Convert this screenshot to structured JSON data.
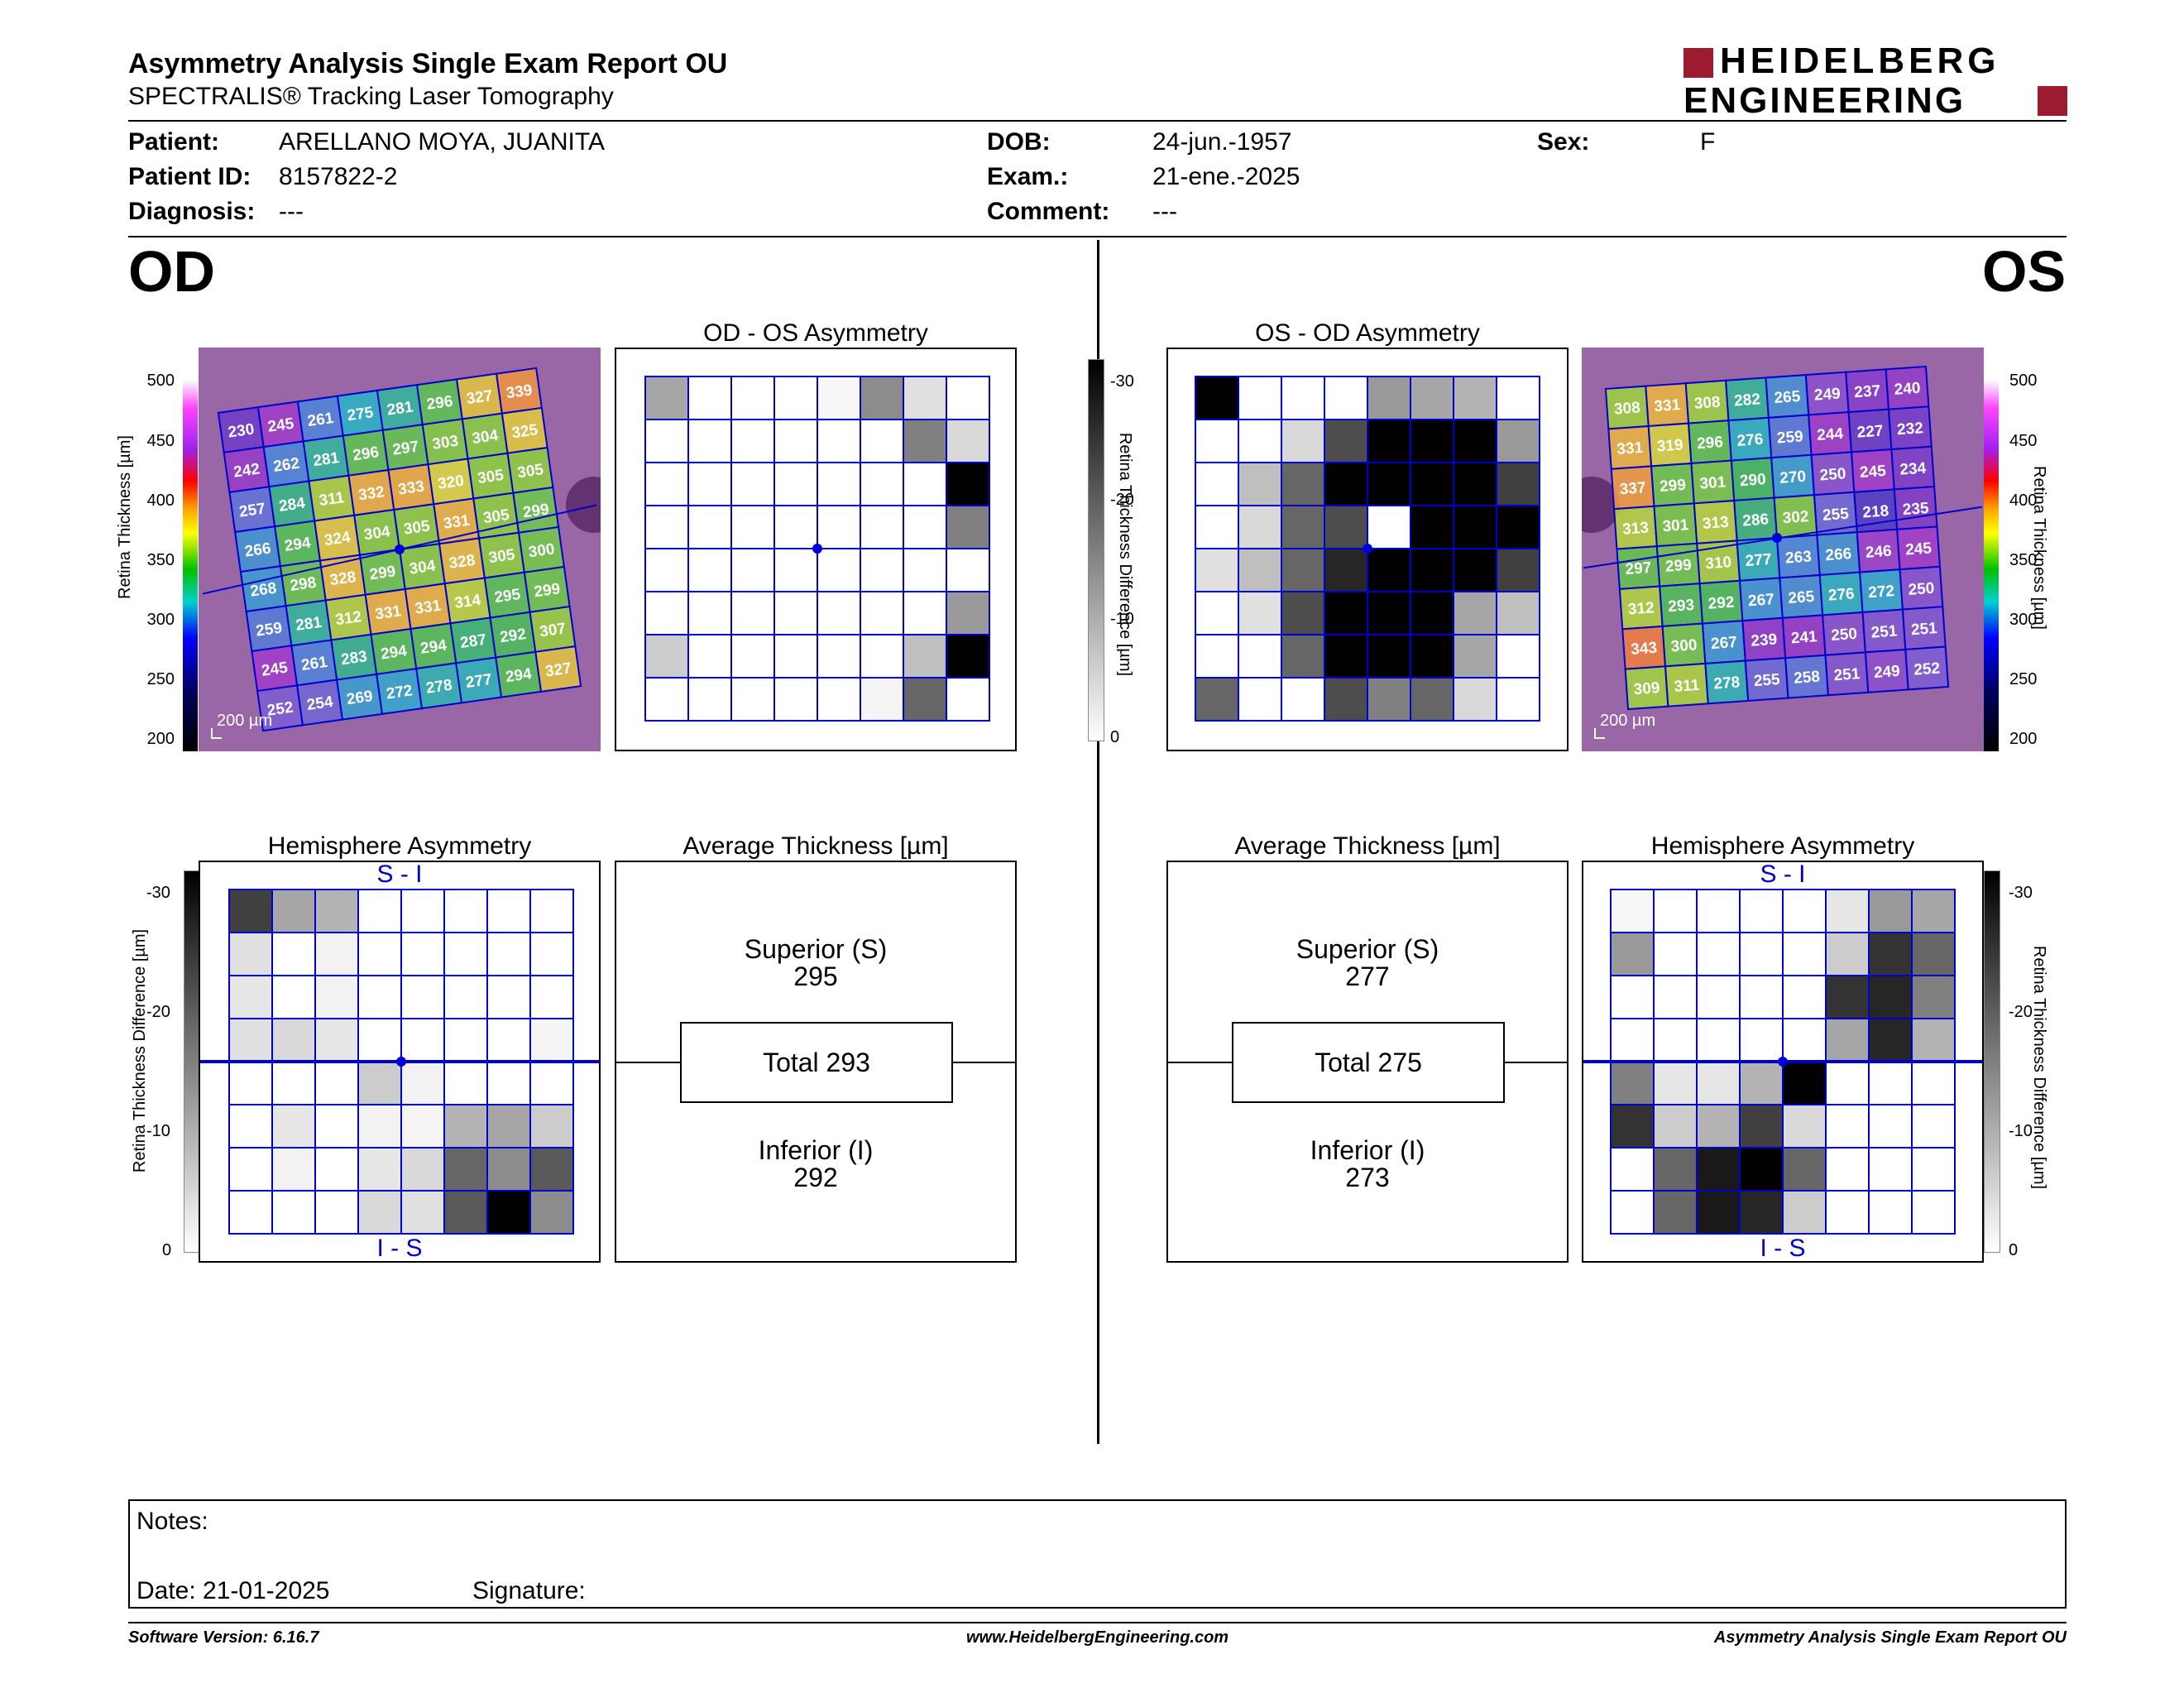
{
  "header": {
    "title": "Asymmetry Analysis Single Exam Report OU",
    "subtitle": "SPECTRALIS® Tracking Laser Tomography",
    "logo_line1": "HEIDELBERG",
    "logo_line2": "ENGINEERING",
    "brand_color": "#9c1b2e"
  },
  "patient": {
    "patient_label": "Patient:",
    "patient_value": "ARELLANO MOYA, JUANITA",
    "id_label": "Patient ID:",
    "id_value": "8157822-2",
    "diagnosis_label": "Diagnosis:",
    "diagnosis_value": "---",
    "dob_label": "DOB:",
    "dob_value": "24-jun.-1957",
    "exam_label": "Exam.:",
    "exam_value": "21-ene.-2025",
    "comment_label": "Comment:",
    "comment_value": "---",
    "sex_label": "Sex:",
    "sex_value": "F"
  },
  "eyes": {
    "od": "OD",
    "os": "OS"
  },
  "thickness_scale": {
    "axis_label": "Retina Thickness [µm]",
    "ticks": [
      "500",
      "450",
      "400",
      "350",
      "300",
      "250",
      "200"
    ],
    "scale_bar": "200 µm"
  },
  "difference_scale": {
    "axis_label": "Retina Thickness Difference [µm]",
    "ticks": [
      "-30",
      "-20",
      "-10",
      "0"
    ]
  },
  "od": {
    "map_values": [
      [
        230,
        245,
        261,
        275,
        281,
        296,
        327,
        339
      ],
      [
        242,
        262,
        281,
        296,
        297,
        303,
        304,
        325
      ],
      [
        257,
        284,
        311,
        332,
        333,
        320,
        305,
        305
      ],
      [
        266,
        294,
        324,
        304,
        305,
        331,
        305,
        299
      ],
      [
        268,
        298,
        328,
        299,
        304,
        328,
        305,
        300
      ],
      [
        259,
        281,
        312,
        331,
        331,
        314,
        295,
        299
      ],
      [
        245,
        261,
        283,
        294,
        294,
        287,
        292,
        307
      ],
      [
        252,
        254,
        269,
        272,
        278,
        277,
        294,
        327
      ]
    ],
    "asym_title": "OD - OS Asymmetry",
    "asym_grid": [
      [
        0.35,
        0,
        0,
        0,
        0.03,
        0.45,
        0.12,
        0
      ],
      [
        0,
        0,
        0,
        0,
        0,
        0,
        0.5,
        0.15
      ],
      [
        0,
        0,
        0,
        0,
        0,
        0,
        0,
        1
      ],
      [
        0,
        0,
        0,
        0,
        0,
        0,
        0,
        0.5
      ],
      [
        0,
        0,
        0,
        0,
        0,
        0,
        0,
        0
      ],
      [
        0,
        0,
        0,
        0,
        0,
        0,
        0,
        0.4
      ],
      [
        0.2,
        0,
        0,
        0,
        0,
        0,
        0.25,
        1
      ],
      [
        0,
        0,
        0,
        0,
        0,
        0.04,
        0.6,
        0
      ]
    ],
    "hemi_title": "Hemisphere Asymmetry",
    "hemi_top": "S - I",
    "hemi_bottom": "I - S",
    "hemi_grid": [
      [
        0.75,
        0.35,
        0.3,
        0,
        0,
        0,
        0,
        0
      ],
      [
        0.12,
        0,
        0.05,
        0,
        0,
        0,
        0,
        0
      ],
      [
        0.1,
        0,
        0.05,
        0,
        0,
        0,
        0,
        0
      ],
      [
        0.12,
        0.15,
        0.1,
        0,
        0,
        0,
        0,
        0.04
      ],
      [
        0,
        0,
        0,
        0.2,
        0.05,
        0,
        0,
        0
      ],
      [
        0,
        0.1,
        0,
        0.05,
        0.04,
        0.3,
        0.35,
        0.2
      ],
      [
        0,
        0.05,
        0,
        0.1,
        0.15,
        0.6,
        0.45,
        0.65
      ],
      [
        0,
        0,
        0,
        0.15,
        0.12,
        0.65,
        1,
        0.45
      ]
    ],
    "avg_title": "Average Thickness [µm]",
    "superior_label": "Superior (S)",
    "superior_value": "295",
    "total_label": "Total 293",
    "inferior_label": "Inferior (I)",
    "inferior_value": "292"
  },
  "os": {
    "map_values": [
      [
        308,
        331,
        308,
        282,
        265,
        249,
        237,
        240
      ],
      [
        331,
        319,
        296,
        276,
        259,
        244,
        227,
        232
      ],
      [
        337,
        299,
        301,
        290,
        270,
        250,
        245,
        234
      ],
      [
        313,
        301,
        313,
        286,
        302,
        255,
        218,
        235
      ],
      [
        297,
        299,
        310,
        277,
        263,
        266,
        246,
        245
      ],
      [
        312,
        293,
        292,
        267,
        265,
        276,
        272,
        250
      ],
      [
        343,
        300,
        267,
        239,
        241,
        250,
        251,
        251
      ],
      [
        309,
        311,
        278,
        255,
        258,
        251,
        249,
        252
      ]
    ],
    "asym_title": "OS - OD Asymmetry",
    "asym_grid": [
      [
        1,
        0,
        0,
        0,
        0.4,
        0.35,
        0.3,
        0
      ],
      [
        0,
        0,
        0.15,
        0.7,
        1,
        1,
        1,
        0.4
      ],
      [
        0,
        0.25,
        0.6,
        1,
        1,
        1,
        1,
        0.75
      ],
      [
        0,
        0.15,
        0.6,
        0.7,
        0,
        1,
        1,
        1
      ],
      [
        0.12,
        0.25,
        0.6,
        0.85,
        1,
        1,
        1,
        0.75
      ],
      [
        0,
        0.12,
        0.7,
        1,
        1,
        1,
        0.35,
        0.25
      ],
      [
        0,
        0,
        0.6,
        1,
        1,
        1,
        0.35,
        0
      ],
      [
        0.6,
        0,
        0,
        0.7,
        0.5,
        0.6,
        0.15,
        0
      ]
    ],
    "hemi_title": "Hemisphere Asymmetry",
    "hemi_top": "S - I",
    "hemi_bottom": "I - S",
    "hemi_grid": [
      [
        0.03,
        0,
        0,
        0,
        0,
        0.1,
        0.4,
        0.35
      ],
      [
        0.4,
        0,
        0,
        0,
        0,
        0.2,
        0.8,
        0.6
      ],
      [
        0,
        0,
        0,
        0,
        0,
        0.8,
        0.85,
        0.5
      ],
      [
        0,
        0,
        0,
        0,
        0,
        0.35,
        0.85,
        0.3
      ],
      [
        0.5,
        0.1,
        0.1,
        0.3,
        1,
        0,
        0,
        0
      ],
      [
        0.8,
        0.2,
        0.3,
        0.75,
        0.15,
        0,
        0,
        0
      ],
      [
        0,
        0.6,
        0.9,
        1,
        0.6,
        0,
        0,
        0
      ],
      [
        0,
        0.6,
        0.9,
        0.85,
        0.2,
        0,
        0,
        0
      ]
    ],
    "avg_title": "Average Thickness [µm]",
    "superior_label": "Superior (S)",
    "superior_value": "277",
    "total_label": "Total 275",
    "inferior_label": "Inferior (I)",
    "inferior_value": "273"
  },
  "notes": {
    "notes_label": "Notes:",
    "date_label": "Date: 21-01-2025",
    "signature_label": "Signature:"
  },
  "footer": {
    "version": "Software Version: 6.16.7",
    "website": "www.HeidelbergEngineering.com",
    "report_name": "Asymmetry Analysis Single Exam Report OU"
  }
}
